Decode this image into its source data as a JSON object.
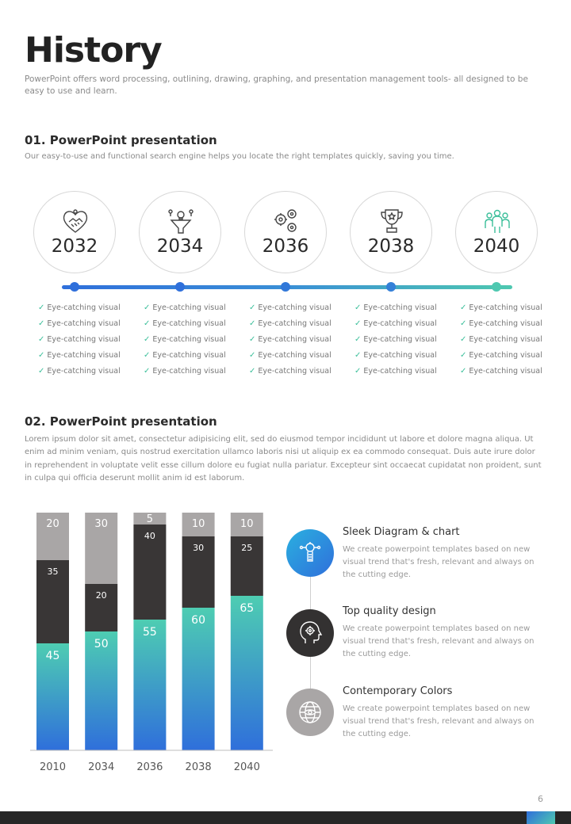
{
  "page": {
    "title": "History",
    "subtitle": "PowerPoint offers word processing, outlining, drawing, graphing, and presentation management tools- all designed to be easy to use and learn.",
    "page_number": "6"
  },
  "section1": {
    "heading": "01. PowerPoint presentation",
    "description": "Our easy-to-use and functional search engine helps you locate the right templates quickly, saving you time.",
    "milestones": [
      {
        "year": "2032",
        "icon": "handshake-heart-icon"
      },
      {
        "year": "2034",
        "icon": "idea-funnel-icon"
      },
      {
        "year": "2036",
        "icon": "gears-icon"
      },
      {
        "year": "2038",
        "icon": "trophy-icon"
      },
      {
        "year": "2040",
        "icon": "team-icon"
      }
    ],
    "checklist_item": "Eye-catching visual",
    "colors": {
      "line_start": "#2f6fdb",
      "line_end": "#4ec8b0",
      "check": "#3bbf9a"
    }
  },
  "section2": {
    "heading": "02. PowerPoint presentation",
    "paragraph": "Lorem ipsum dolor sit amet, consectetur adipisicing elit, sed do eiusmod tempor incididunt ut labore et dolore magna aliqua. Ut enim ad minim veniam, quis nostrud exercitation ullamco laboris nisi ut aliquip ex ea commodo consequat. Duis aute irure dolor in reprehendent in voluptate velit esse cillum dolore eu fugiat nulla pariatur. Excepteur sint occaecat cupidatat non proident, sunt in culpa qui officia deserunt mollit anim id est laborum."
  },
  "chart_data": {
    "type": "bar",
    "stacked": true,
    "categories": [
      "2010",
      "2034",
      "2036",
      "2038",
      "2040"
    ],
    "series": [
      {
        "values": [
          45,
          50,
          55,
          60,
          65
        ],
        "color": "#4ec8b0"
      },
      {
        "values": [
          35,
          20,
          40,
          30,
          25
        ],
        "color": "#393636"
      },
      {
        "values": [
          20,
          30,
          5,
          10,
          10
        ],
        "color": "#a9a6a6"
      }
    ],
    "ylim": [
      0,
      100
    ]
  },
  "features": [
    {
      "title": "Sleek Diagram & chart",
      "desc": "We create powerpoint templates based on new visual trend that's fresh, relevant and always on the cutting edge.",
      "icon": "mind-network-icon",
      "color": "#2f7fdc"
    },
    {
      "title": "Top quality design",
      "desc": "We create powerpoint templates based on new visual trend that's fresh, relevant and always on the cutting edge.",
      "icon": "head-gear-icon",
      "color": "#333131"
    },
    {
      "title": "Contemporary Colors",
      "desc": "We create powerpoint templates based on new visual trend that's fresh, relevant and always on the cutting edge.",
      "icon": "globe-eye-icon",
      "color": "#a9a6a6"
    }
  ]
}
